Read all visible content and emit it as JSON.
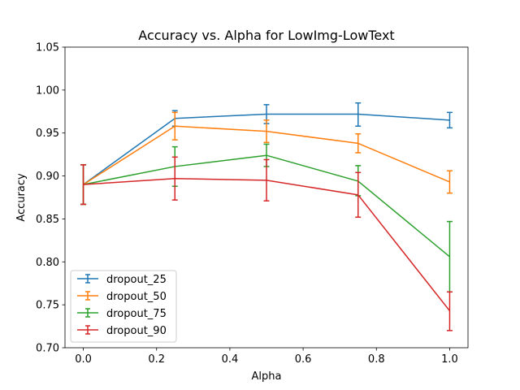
{
  "chart_data": {
    "type": "line",
    "title": "Accuracy vs. Alpha for LowImg-LowText",
    "xlabel": "Alpha",
    "ylabel": "Accuracy",
    "xlim": [
      -0.05,
      1.05
    ],
    "ylim": [
      0.7,
      1.05
    ],
    "xticks": [
      0.0,
      0.2,
      0.4,
      0.6,
      0.8,
      1.0
    ],
    "xtick_labels": [
      "0.0",
      "0.2",
      "0.4",
      "0.6",
      "0.8",
      "1.0"
    ],
    "yticks": [
      0.7,
      0.75,
      0.8,
      0.85,
      0.9,
      0.95,
      1.0,
      1.05
    ],
    "ytick_labels": [
      "0.70",
      "0.75",
      "0.80",
      "0.85",
      "0.90",
      "0.95",
      "1.00",
      "1.05"
    ],
    "grid": false,
    "legend_position": "lower-left",
    "x": [
      0.0,
      0.25,
      0.5,
      0.75,
      1.0
    ],
    "series": [
      {
        "name": "dropout_25",
        "color": "#1f77b4",
        "values": [
          0.89,
          0.967,
          0.972,
          0.972,
          0.965
        ],
        "err_lower": [
          0.867,
          0.958,
          0.961,
          0.958,
          0.956
        ],
        "err_upper": [
          0.913,
          0.976,
          0.983,
          0.985,
          0.974
        ]
      },
      {
        "name": "dropout_50",
        "color": "#ff7f0e",
        "values": [
          0.89,
          0.958,
          0.952,
          0.938,
          0.893
        ],
        "err_lower": [
          0.867,
          0.942,
          0.939,
          0.927,
          0.88
        ],
        "err_upper": [
          0.913,
          0.974,
          0.965,
          0.949,
          0.906
        ]
      },
      {
        "name": "dropout_75",
        "color": "#2ca02c",
        "values": [
          0.89,
          0.911,
          0.924,
          0.894,
          0.806
        ],
        "err_lower": [
          0.867,
          0.888,
          0.911,
          0.877,
          0.765
        ],
        "err_upper": [
          0.913,
          0.934,
          0.937,
          0.912,
          0.847
        ]
      },
      {
        "name": "dropout_90",
        "color": "#d62728",
        "values": [
          0.89,
          0.897,
          0.895,
          0.878,
          0.743
        ],
        "err_lower": [
          0.867,
          0.872,
          0.871,
          0.852,
          0.72
        ],
        "err_upper": [
          0.913,
          0.922,
          0.919,
          0.904,
          0.765
        ]
      }
    ]
  }
}
